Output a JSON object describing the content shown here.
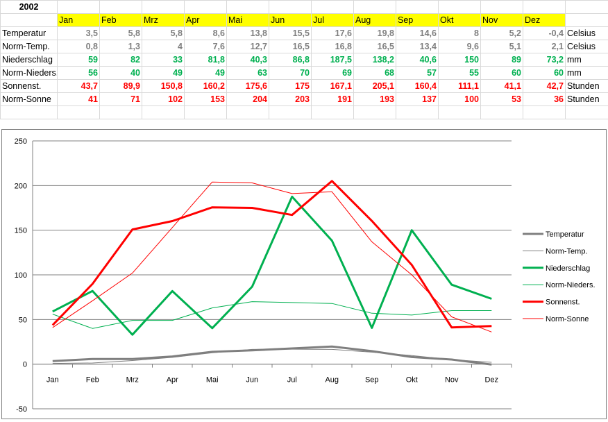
{
  "sheet": {
    "year": "2002",
    "months": [
      "Jan",
      "Feb",
      "Mrz",
      "Apr",
      "Mai",
      "Jun",
      "Jul",
      "Aug",
      "Sep",
      "Okt",
      "Nov",
      "Dez"
    ],
    "rows": [
      {
        "label": "Temperatur",
        "color": "gray",
        "unit": "Celsius",
        "values": [
          "3,5",
          "5,8",
          "5,8",
          "8,6",
          "13,8",
          "15,5",
          "17,6",
          "19,8",
          "14,6",
          "8",
          "5,2",
          "-0,4"
        ]
      },
      {
        "label": "Norm-Temp.",
        "color": "gray",
        "unit": "Celsius",
        "values": [
          "0,8",
          "1,3",
          "4",
          "7,6",
          "12,7",
          "16,5",
          "16,8",
          "16,5",
          "13,4",
          "9,6",
          "5,1",
          "2,1"
        ]
      },
      {
        "label": "Niederschlag",
        "color": "green",
        "unit": "mm",
        "values": [
          "59",
          "82",
          "33",
          "81,8",
          "40,3",
          "86,8",
          "187,5",
          "138,2",
          "40,6",
          "150",
          "89",
          "73,2"
        ]
      },
      {
        "label": "Norm-Nieders.",
        "color": "green",
        "unit": "mm",
        "values": [
          "56",
          "40",
          "49",
          "49",
          "63",
          "70",
          "69",
          "68",
          "57",
          "55",
          "60",
          "60"
        ]
      },
      {
        "label": "Sonnenst.",
        "color": "red",
        "unit": "Stunden",
        "values": [
          "43,7",
          "89,9",
          "150,8",
          "160,2",
          "175,6",
          "175",
          "167,1",
          "205,1",
          "160,4",
          "111,1",
          "41,1",
          "42,7"
        ]
      },
      {
        "label": "Norm-Sonne",
        "color": "red",
        "unit": "Stunden",
        "values": [
          "41",
          "71",
          "102",
          "153",
          "204",
          "203",
          "191",
          "193",
          "137",
          "100",
          "53",
          "36"
        ]
      }
    ]
  },
  "chart_data": {
    "type": "line",
    "categories": [
      "Jan",
      "Feb",
      "Mrz",
      "Apr",
      "Mai",
      "Jun",
      "Jul",
      "Aug",
      "Sep",
      "Okt",
      "Nov",
      "Dez"
    ],
    "ylim": [
      -50,
      250
    ],
    "yticks": [
      -50,
      0,
      50,
      100,
      150,
      200,
      250
    ],
    "grid": true,
    "legend_position": "right",
    "series": [
      {
        "name": "Temperatur",
        "color": "#7f7f7f",
        "width": "thick",
        "values": [
          3.5,
          5.8,
          5.8,
          8.6,
          13.8,
          15.5,
          17.6,
          19.8,
          14.6,
          8,
          5.2,
          -0.4
        ]
      },
      {
        "name": "Norm-Temp.",
        "color": "#7f7f7f",
        "width": "thin",
        "values": [
          0.8,
          1.3,
          4,
          7.6,
          12.7,
          16.5,
          16.8,
          16.5,
          13.4,
          9.6,
          5.1,
          2.1
        ]
      },
      {
        "name": "Niederschlag",
        "color": "#00b050",
        "width": "thick",
        "values": [
          59,
          82,
          33,
          81.8,
          40.3,
          86.8,
          187.5,
          138.2,
          40.6,
          150,
          89,
          73.2
        ]
      },
      {
        "name": "Norm-Nieders.",
        "color": "#00b050",
        "width": "thin",
        "values": [
          56,
          40,
          49,
          49,
          63,
          70,
          69,
          68,
          57,
          55,
          60,
          60
        ]
      },
      {
        "name": "Sonnenst.",
        "color": "#ff0000",
        "width": "thick",
        "values": [
          43.7,
          89.9,
          150.8,
          160.2,
          175.6,
          175,
          167.1,
          205.1,
          160.4,
          111.1,
          41.1,
          42.7
        ]
      },
      {
        "name": "Norm-Sonne",
        "color": "#ff0000",
        "width": "thin",
        "values": [
          41,
          71,
          102,
          153,
          204,
          203,
          191,
          193,
          137,
          100,
          53,
          36
        ]
      }
    ]
  }
}
